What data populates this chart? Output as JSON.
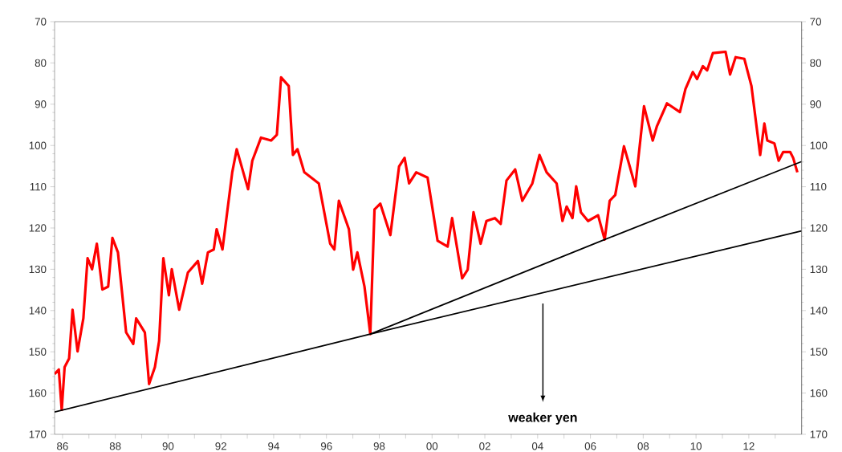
{
  "chart_data": {
    "type": "line",
    "x": [
      1985.7,
      1985.86,
      1985.97,
      1986.08,
      1986.25,
      1986.38,
      1986.57,
      1986.79,
      1986.95,
      1987.12,
      1987.3,
      1987.51,
      1987.73,
      1987.89,
      1988.1,
      1988.41,
      1988.68,
      1988.79,
      1989.12,
      1989.28,
      1989.5,
      1989.66,
      1989.82,
      1990.03,
      1990.14,
      1990.42,
      1990.75,
      1991.13,
      1991.29,
      1991.51,
      1991.73,
      1991.84,
      1992.06,
      1992.43,
      1992.6,
      1993.03,
      1993.19,
      1993.52,
      1993.9,
      1994.12,
      1994.28,
      1994.57,
      1994.73,
      1994.9,
      1995.16,
      1995.71,
      1996.14,
      1996.3,
      1996.47,
      1996.85,
      1997.01,
      1997.17,
      1997.44,
      1997.66,
      1997.82,
      1998.04,
      1998.42,
      1998.75,
      1998.96,
      1999.13,
      1999.4,
      1999.83,
      2000.21,
      2000.59,
      2000.76,
      2001.14,
      2001.35,
      2001.57,
      2001.84,
      2002.06,
      2002.38,
      2002.6,
      2002.82,
      2003.15,
      2003.42,
      2003.8,
      2004.07,
      2004.34,
      2004.72,
      2004.94,
      2005.1,
      2005.32,
      2005.46,
      2005.64,
      2005.91,
      2006.29,
      2006.54,
      2006.73,
      2006.94,
      2007.27,
      2007.49,
      2007.7,
      2008.03,
      2008.36,
      2008.52,
      2008.9,
      2009.39,
      2009.6,
      2009.88,
      2010.04,
      2010.26,
      2010.42,
      2010.64,
      2011.12,
      2011.29,
      2011.5,
      2011.83,
      2012.1,
      2012.43,
      2012.59,
      2012.7,
      2012.97,
      2013.13,
      2013.3,
      2013.57,
      2013.68,
      2013.84
    ],
    "series": [
      {
        "color": "#ff0000",
        "values": [
          155.4,
          154.3,
          164.1,
          153.7,
          151.6,
          139.8,
          149.9,
          141.9,
          127.3,
          130,
          123.8,
          134.9,
          134.2,
          122.4,
          125.9,
          145.3,
          148.1,
          141.9,
          145.3,
          157.8,
          153.7,
          147.4,
          127.3,
          136.3,
          130,
          139.8,
          130.8,
          128,
          133.5,
          125.9,
          125.2,
          120.3,
          125.2,
          106.5,
          100.9,
          110.6,
          103.7,
          98.1,
          98.8,
          97.4,
          83.5,
          85.6,
          102.3,
          100.9,
          106.5,
          109.2,
          123.8,
          125.2,
          113.4,
          120.3,
          130.1,
          125.9,
          134.2,
          145.7,
          115.5,
          114.1,
          121.7,
          105.1,
          103,
          109.2,
          106.5,
          107.8,
          123.1,
          124.5,
          117.6,
          132.2,
          130.1,
          116.2,
          123.8,
          118.3,
          117.6,
          119,
          108.5,
          105.8,
          113.4,
          109.2,
          102.3,
          106.5,
          109.2,
          118.3,
          114.8,
          117.6,
          109.9,
          116.2,
          118.3,
          116.9,
          122.8,
          113.4,
          112,
          100.2,
          105.1,
          109.9,
          90.5,
          98.8,
          95.3,
          89.8,
          91.9,
          86.3,
          82.2,
          83.9,
          80.8,
          81.8,
          77.6,
          77.3,
          82.8,
          78.6,
          79,
          85.6,
          102.3,
          94.7,
          98.8,
          99.5,
          103.7,
          101.6,
          101.6,
          103,
          106.5
        ]
      },
      {
        "color": "#000000",
        "x": [
          1985.7,
          1997.66,
          2014.0
        ],
        "values": [
          164.6,
          145.7,
          120.7
        ]
      },
      {
        "color": "#000000",
        "x": [
          1997.66,
          2006.54,
          2014.0
        ],
        "values": [
          145.7,
          122.8,
          103.9
        ]
      }
    ],
    "xlim": [
      1985.7,
      2014.0
    ],
    "xticks": [
      {
        "value": 1986,
        "label": "86"
      },
      {
        "value": 1987,
        "label": null
      },
      {
        "value": 1988,
        "label": "88"
      },
      {
        "value": 1989,
        "label": null
      },
      {
        "value": 1990,
        "label": "90"
      },
      {
        "value": 1991,
        "label": null
      },
      {
        "value": 1992,
        "label": "92"
      },
      {
        "value": 1993,
        "label": null
      },
      {
        "value": 1994,
        "label": "94"
      },
      {
        "value": 1995,
        "label": null
      },
      {
        "value": 1996,
        "label": "96"
      },
      {
        "value": 1997,
        "label": null
      },
      {
        "value": 1998,
        "label": "98"
      },
      {
        "value": 1999,
        "label": null
      },
      {
        "value": 2000,
        "label": "00"
      },
      {
        "value": 2001,
        "label": null
      },
      {
        "value": 2002,
        "label": "02"
      },
      {
        "value": 2003,
        "label": null
      },
      {
        "value": 2004,
        "label": "04"
      },
      {
        "value": 2005,
        "label": null
      },
      {
        "value": 2006,
        "label": "06"
      },
      {
        "value": 2007,
        "label": null
      },
      {
        "value": 2008,
        "label": "08"
      },
      {
        "value": 2009,
        "label": null
      },
      {
        "value": 2010,
        "label": "10"
      },
      {
        "value": 2011,
        "label": null
      },
      {
        "value": 2012,
        "label": "12"
      },
      {
        "value": 2013,
        "label": null
      }
    ],
    "ylim": [
      170,
      70
    ],
    "yticks": [
      70,
      80,
      90,
      100,
      110,
      120,
      130,
      140,
      150,
      160,
      170
    ],
    "y2lim": [
      170,
      70
    ],
    "y2ticks": [
      70,
      80,
      90,
      100,
      110,
      120,
      130,
      140,
      150,
      160,
      170
    ],
    "grid": false,
    "marker": "none",
    "line_style": "solid",
    "annotations": [
      "weaker yen"
    ]
  }
}
